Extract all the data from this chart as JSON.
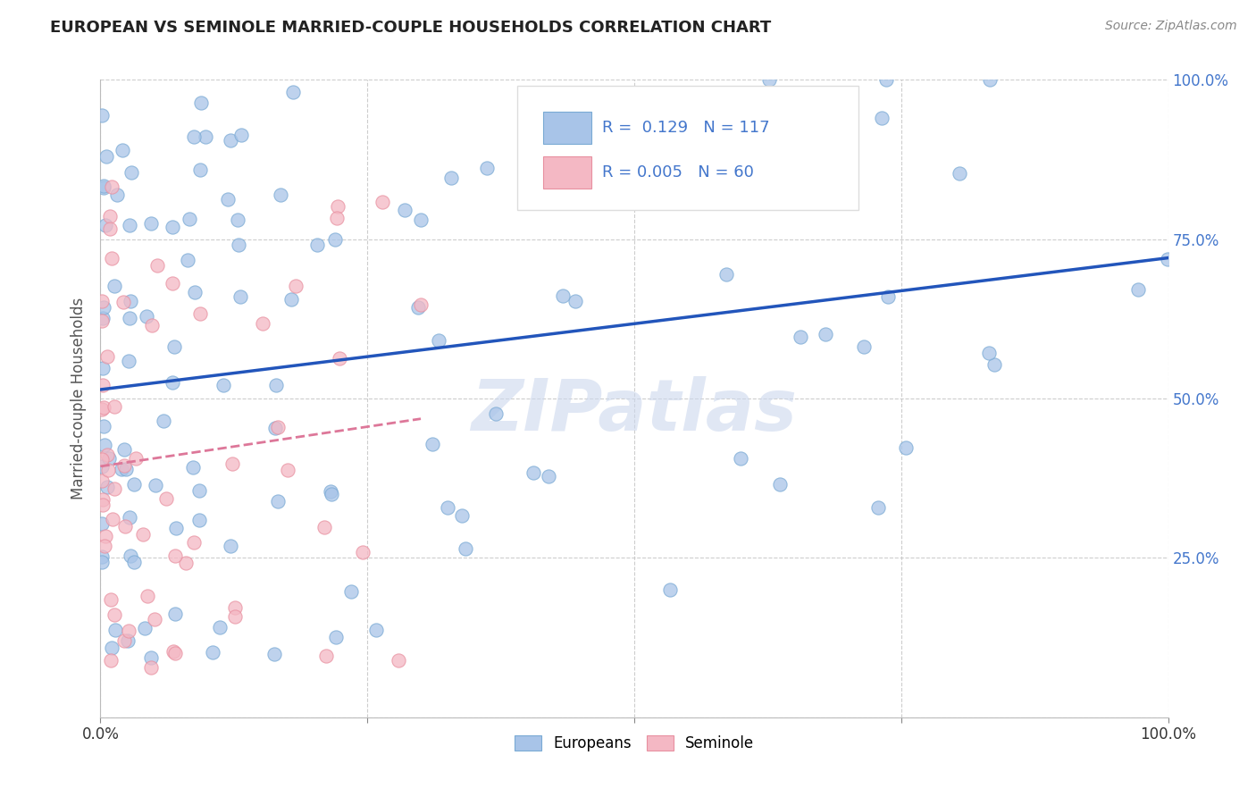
{
  "title": "EUROPEAN VS SEMINOLE MARRIED-COUPLE HOUSEHOLDS CORRELATION CHART",
  "source": "Source: ZipAtlas.com",
  "ylabel": "Married-couple Households",
  "european_color": "#a8c4e8",
  "european_edge": "#7aaad4",
  "seminole_color": "#f4b8c4",
  "seminole_edge": "#e890a0",
  "trend_european_color": "#2255bb",
  "trend_seminole_color": "#dd7799",
  "watermark": "ZIPatlas",
  "background_color": "#ffffff",
  "grid_color": "#c8c8c8",
  "marker_size": 120,
  "title_fontsize": 13,
  "axis_fontsize": 12,
  "legend_r_eu": "R =  0.129",
  "legend_n_eu": "N = 117",
  "legend_r_sem": "R = 0.005",
  "legend_n_sem": "N = 60",
  "ytick_color": "#4477cc"
}
